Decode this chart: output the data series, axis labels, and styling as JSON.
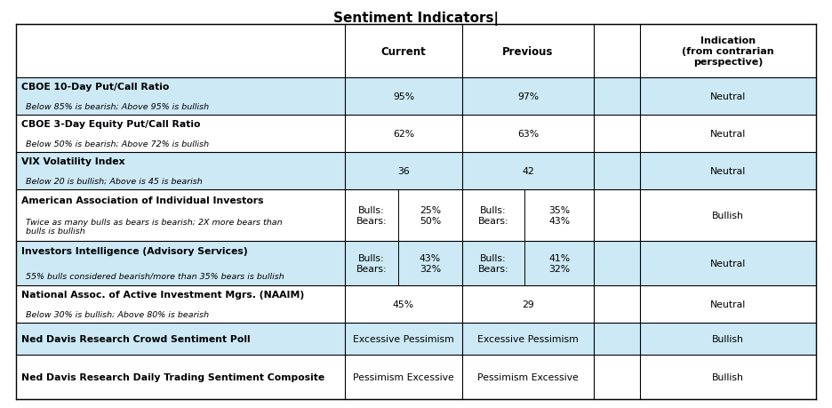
{
  "title": "Sentiment Indicators|",
  "title_fontsize": 11,
  "background_color": "#ffffff",
  "light_blue": "#cce9f5",
  "rows": [
    {
      "label_bold": "CBOE 10-Day Put/Call Ratio",
      "label_italic": "Below 85% is bearish; Above 95% is bullish",
      "current_left": "",
      "current_right": "95%",
      "previous_left": "",
      "previous_right": "97%",
      "indication": "Neutral",
      "highlight": true,
      "split": false
    },
    {
      "label_bold": "CBOE 3-Day Equity Put/Call Ratio",
      "label_italic": "Below 50% is bearish; Above 72% is bullish",
      "current_left": "",
      "current_right": "62%",
      "previous_left": "",
      "previous_right": "63%",
      "indication": "Neutral",
      "highlight": false,
      "split": false
    },
    {
      "label_bold": "VIX Volatility Index",
      "label_italic": "Below 20 is bullish; Above is 45 is bearish",
      "current_left": "",
      "current_right": "36",
      "previous_left": "",
      "previous_right": "42",
      "indication": "Neutral",
      "highlight": true,
      "split": false
    },
    {
      "label_bold": "American Association of Individual Investors",
      "label_italic": "Twice as many bulls as bears is bearish; 2X more bears than\nbulls is bullish",
      "current_left": "Bulls:\nBears:",
      "current_right": "25%\n50%",
      "previous_left": "Bulls:\nBears:",
      "previous_right": "35%\n43%",
      "indication": "Bullish",
      "highlight": false,
      "split": true
    },
    {
      "label_bold": "Investors Intelligence (Advisory Services)",
      "label_italic": "55% bulls considered bearish/more than 35% bears is bullish",
      "current_left": "Bulls:\nBears:",
      "current_right": "43%\n32%",
      "previous_left": "Bulls:\nBears:",
      "previous_right": "41%\n32%",
      "indication": "Neutral",
      "highlight": true,
      "split": true
    },
    {
      "label_bold": "National Assoc. of Active Investment Mgrs. (NAAIM)",
      "label_italic": "Below 30% is bullish; Above 80% is bearish",
      "current_left": "",
      "current_right": "45%",
      "previous_left": "",
      "previous_right": "29",
      "indication": "Neutral",
      "highlight": false,
      "split": false
    },
    {
      "label_bold": "Ned Davis Research Crowd Sentiment Poll",
      "label_italic": "",
      "current_left": "",
      "current_right": "Excessive Pessimism",
      "previous_left": "",
      "previous_right": "Excessive Pessimism",
      "indication": "Bullish",
      "highlight": true,
      "split": false
    },
    {
      "label_bold": "Ned Davis Research Daily Trading Sentiment Composite",
      "label_italic": "",
      "current_left": "",
      "current_right": "Pessimism Excessive",
      "previous_left": "",
      "previous_right": "Pessimism Excessive",
      "indication": "Bullish",
      "highlight": false,
      "split": false
    }
  ]
}
